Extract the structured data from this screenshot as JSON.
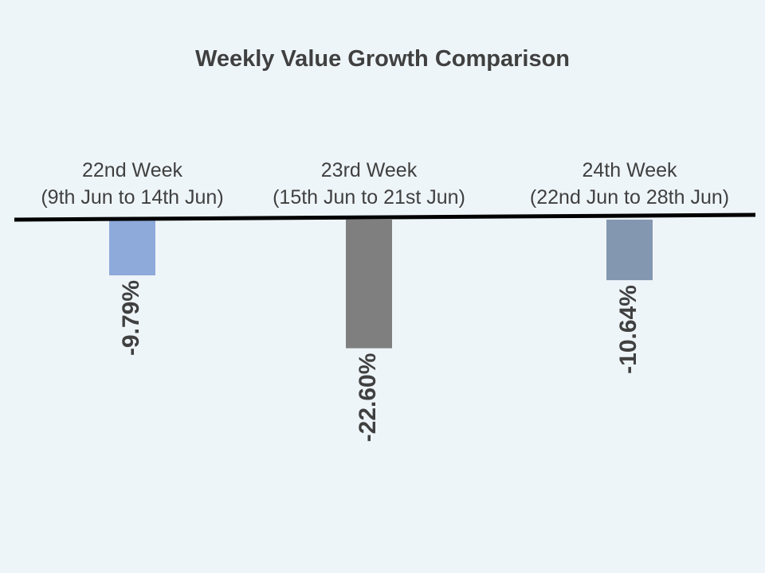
{
  "chart_data": {
    "type": "bar",
    "title": "Weekly Value Growth Comparison",
    "xlabel": "",
    "ylabel": "",
    "unit": "%",
    "ylim": [
      -30,
      0
    ],
    "grid": false,
    "legend": "none",
    "categories": [
      [
        "22nd Week",
        "(9th Jun to 14th Jun)"
      ],
      [
        "23rd Week",
        "(15th Jun to 21st Jun)"
      ],
      [
        "24th Week",
        "(22nd Jun to 28th Jun)"
      ]
    ],
    "values": [
      -9.79,
      -22.6,
      -10.64
    ],
    "data_labels": [
      "-9.79%",
      "-22.60%",
      "-10.64%"
    ],
    "colors": [
      "#8eaadb",
      "#7f7f7f",
      "#8497b0"
    ],
    "baseline_color": "#000000"
  }
}
